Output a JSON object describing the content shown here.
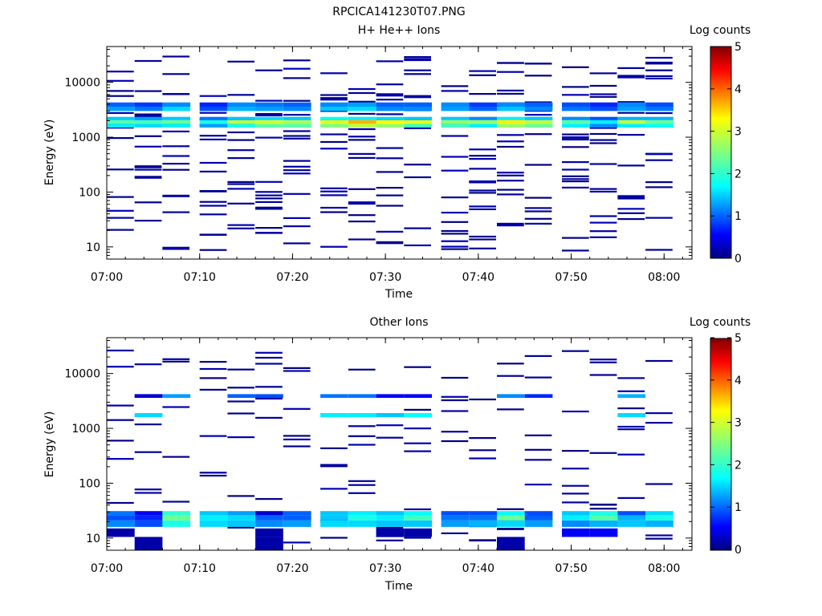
{
  "figure": {
    "title": "RPCICA141230T07.PNG"
  },
  "chart_data": [
    {
      "type": "heatmap",
      "title": "H+ He++ Ions",
      "xlabel": "Time",
      "ylabel": "Energy (eV)",
      "x_ticks": [
        "07:00",
        "07:10",
        "07:20",
        "07:30",
        "07:40",
        "07:50",
        "08:00"
      ],
      "x_range": [
        "07:00",
        "08:03"
      ],
      "y_scale": "log",
      "y_ticks": [
        "10",
        "100",
        "1000",
        "10000"
      ],
      "y_range": [
        6,
        45000
      ],
      "colorbar": {
        "label": "Log counts",
        "range": [
          0,
          5
        ],
        "ticks": [
          "0",
          "1",
          "2",
          "3",
          "4",
          "5"
        ]
      },
      "time_bins": [
        "07:00",
        "07:03",
        "07:06",
        "07:10",
        "07:13",
        "07:16",
        "07:19",
        "07:23",
        "07:26",
        "07:29",
        "07:32",
        "07:36",
        "07:39",
        "07:42",
        "07:45",
        "07:49",
        "07:52",
        "07:55",
        "07:58"
      ],
      "band_rows": [
        {
          "lo": 1500,
          "hi": 1750,
          "values": [
            1.8,
            1.7,
            1.8,
            1.4,
            2.0,
            2.3,
            2.3,
            2.5,
            2.8,
            2.6,
            2.2,
            2.2,
            1.8,
            2.6,
            2.4,
            1.8,
            1.3,
            1.8,
            1.9
          ]
        },
        {
          "lo": 1750,
          "hi": 2050,
          "values": [
            2.3,
            2.2,
            2.4,
            2.0,
            2.8,
            2.9,
            2.7,
            3.0,
            3.5,
            3.1,
            3.0,
            2.6,
            2.6,
            3.2,
            2.8,
            2.3,
            1.8,
            2.8,
            2.4
          ]
        },
        {
          "lo": 2050,
          "hi": 2350,
          "values": [
            1.6,
            1.4,
            1.6,
            1.2,
            1.6,
            1.7,
            1.6,
            1.9,
            1.8,
            1.7,
            1.6,
            1.6,
            1.3,
            1.8,
            1.6,
            1.3,
            1.0,
            1.5,
            1.5
          ]
        },
        {
          "lo": 3000,
          "hi": 3600,
          "values": [
            1.4,
            1.2,
            1.7,
            1.0,
            1.5,
            1.4,
            1.3,
            1.6,
            1.7,
            1.3,
            1.3,
            1.4,
            1.1,
            1.6,
            1.3,
            1.2,
            1.0,
            1.4,
            1.2
          ]
        },
        {
          "lo": 3600,
          "hi": 4300,
          "values": [
            1.1,
            0.9,
            1.3,
            0.8,
            1.3,
            1.2,
            1.1,
            1.3,
            1.4,
            1.1,
            1.1,
            1.3,
            0.9,
            1.3,
            1.1,
            1.0,
            0.8,
            1.3,
            1.0
          ]
        }
      ],
      "sparse_level": 0
    },
    {
      "type": "heatmap",
      "title": "Other Ions",
      "xlabel": "Time",
      "ylabel": "Energy (eV)",
      "x_ticks": [
        "07:00",
        "07:10",
        "07:20",
        "07:30",
        "07:40",
        "07:50",
        "08:00"
      ],
      "x_range": [
        "07:00",
        "08:03"
      ],
      "y_scale": "log",
      "y_ticks": [
        "10",
        "100",
        "1000",
        "10000"
      ],
      "y_range": [
        6,
        45000
      ],
      "colorbar": {
        "label": "Log counts",
        "range": [
          0,
          5
        ],
        "ticks": [
          "0",
          "1",
          "2",
          "3",
          "4",
          "5"
        ]
      },
      "time_bins": [
        "07:00",
        "07:03",
        "07:06",
        "07:10",
        "07:13",
        "07:16",
        "07:19",
        "07:23",
        "07:26",
        "07:29",
        "07:32",
        "07:36",
        "07:39",
        "07:42",
        "07:45",
        "07:49",
        "07:52",
        "07:55",
        "07:58"
      ],
      "band_rows": [
        {
          "lo": 16,
          "hi": 21,
          "values": [
            1.3,
            1.0,
            2.0,
            1.7,
            1.6,
            1.3,
            1.4,
            1.7,
            1.7,
            1.6,
            1.6,
            1.4,
            1.5,
            1.7,
            1.4,
            1.3,
            1.5,
            1.6,
            1.5
          ]
        },
        {
          "lo": 21,
          "hi": 26,
          "values": [
            1.0,
            0.8,
            2.4,
            1.8,
            1.7,
            1.1,
            1.1,
            1.6,
            2.0,
            1.8,
            2.2,
            1.2,
            1.2,
            2.4,
            1.1,
            1.8,
            2.3,
            1.5,
            2.0
          ]
        },
        {
          "lo": 26,
          "hi": 31,
          "values": [
            1.2,
            0.6,
            2.1,
            1.6,
            1.4,
            0.4,
            1.1,
            1.6,
            1.8,
            1.6,
            1.9,
            1.0,
            1.0,
            1.9,
            1.0,
            1.6,
            2.0,
            1.0,
            1.7
          ]
        },
        {
          "lo": 10.5,
          "hi": 15,
          "values": [
            0.2,
            0,
            0,
            0,
            0,
            0.2,
            0,
            0,
            0,
            0.2,
            0.2,
            0,
            0,
            0,
            0,
            0.6,
            0.6,
            0,
            0
          ]
        },
        {
          "lo": 6,
          "hi": 10.5,
          "values": [
            0,
            0.2,
            0,
            0,
            0,
            0.2,
            0,
            0,
            0,
            0,
            0,
            0,
            0,
            0.2,
            0,
            0,
            0,
            0,
            0
          ]
        },
        {
          "lo": 1600,
          "hi": 1900,
          "values": [
            0,
            1.7,
            0,
            0,
            0,
            0,
            0,
            1.8,
            1.8,
            1.6,
            1.9,
            0,
            0,
            0,
            0,
            0,
            0,
            1.7,
            0
          ]
        },
        {
          "lo": 3600,
          "hi": 4200,
          "values": [
            0,
            0.4,
            1.4,
            0,
            1.1,
            1.0,
            0,
            1.2,
            1.2,
            0.6,
            0.6,
            0,
            0,
            1.3,
            0.8,
            0,
            0,
            1.5,
            0
          ]
        }
      ],
      "sparse_level": 0
    }
  ]
}
